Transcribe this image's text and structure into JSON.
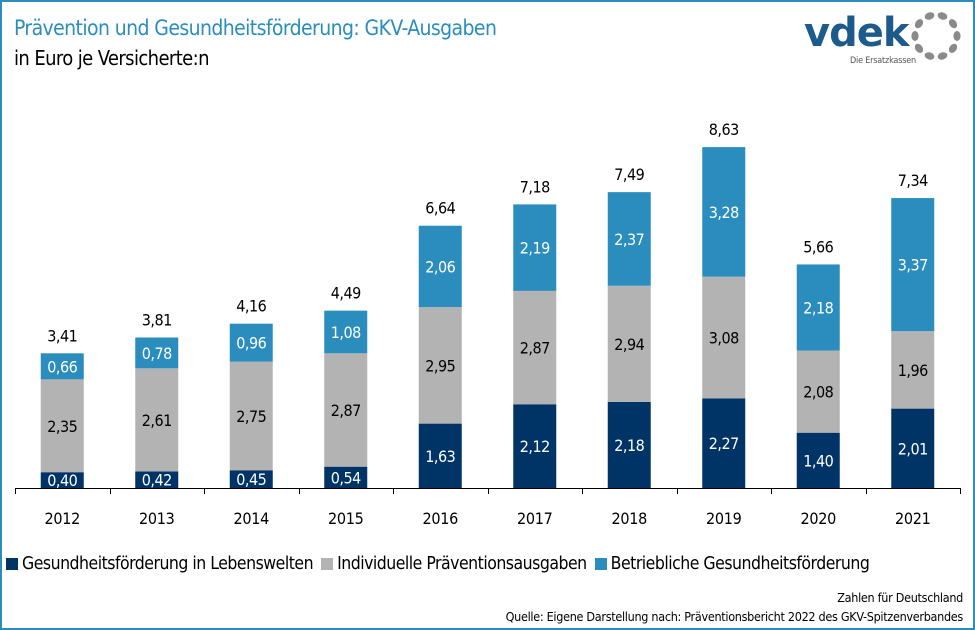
{
  "header": {
    "title": "Prävention und Gesundheitsförderung: GKV-Ausgaben",
    "subtitle": "in Euro je Versicherte:n"
  },
  "logo": {
    "name": "vdek",
    "tagline": "Die Ersatzkassen"
  },
  "colors": {
    "lebenswelten": "#003366",
    "individuell": "#b3b3b3",
    "betrieblich": "#2a8dbe",
    "title": "#2a8dbe"
  },
  "chart_data": {
    "type": "bar",
    "stacked": true,
    "title": "Prävention und Gesundheitsförderung: GKV-Ausgaben",
    "subtitle": "in Euro je Versicherte:n",
    "xlabel": "",
    "ylabel": "",
    "ylim": [
      0,
      9
    ],
    "grid": false,
    "legend_position": "bottom",
    "categories": [
      "2012",
      "2013",
      "2014",
      "2015",
      "2016",
      "2017",
      "2018",
      "2019",
      "2020",
      "2021"
    ],
    "series": [
      {
        "name": "Gesundheitsförderung in Lebenswelten",
        "color": "#003366",
        "label_color": "#ffffff",
        "values": [
          0.4,
          0.42,
          0.45,
          0.54,
          1.63,
          2.12,
          2.18,
          2.27,
          1.4,
          2.01
        ],
        "labels": [
          "0,40",
          "0,42",
          "0,45",
          "0,54",
          "1,63",
          "2,12",
          "2,18",
          "2,27",
          "1,40",
          "2,01"
        ]
      },
      {
        "name": "Individuelle Präventionsausgaben",
        "color": "#b3b3b3",
        "label_color": "#000000",
        "values": [
          2.35,
          2.61,
          2.75,
          2.87,
          2.95,
          2.87,
          2.94,
          3.08,
          2.08,
          1.96
        ],
        "labels": [
          "2,35",
          "2,61",
          "2,75",
          "2,87",
          "2,95",
          "2,87",
          "2,94",
          "3,08",
          "2,08",
          "1,96"
        ]
      },
      {
        "name": "Betriebliche Gesundheitsförderung",
        "color": "#2a8dbe",
        "label_color": "#ffffff",
        "values": [
          0.66,
          0.78,
          0.96,
          1.08,
          2.06,
          2.19,
          2.37,
          3.28,
          2.18,
          3.37
        ],
        "labels": [
          "0,66",
          "0,78",
          "0,96",
          "1,08",
          "2,06",
          "2,19",
          "2,37",
          "3,28",
          "2,18",
          "3,37"
        ]
      }
    ],
    "totals": [
      3.41,
      3.81,
      4.16,
      4.49,
      6.64,
      7.18,
      7.49,
      8.63,
      5.66,
      7.34
    ],
    "total_labels": [
      "3,41",
      "3,81",
      "4,16",
      "4,49",
      "6,64",
      "7,18",
      "7,49",
      "8,63",
      "5,66",
      "7,34"
    ]
  },
  "legend": [
    {
      "label": "Gesundheitsförderung in Lebenswelten"
    },
    {
      "label": "Individuelle Präventionsausgaben"
    },
    {
      "label": "Betriebliche Gesundheitsförderung"
    }
  ],
  "footer": {
    "note": "Zahlen für Deutschland",
    "source": "Quelle: Eigene Darstellung nach: Präventionsbericht 2022 des GKV-Spitzenverbandes"
  }
}
